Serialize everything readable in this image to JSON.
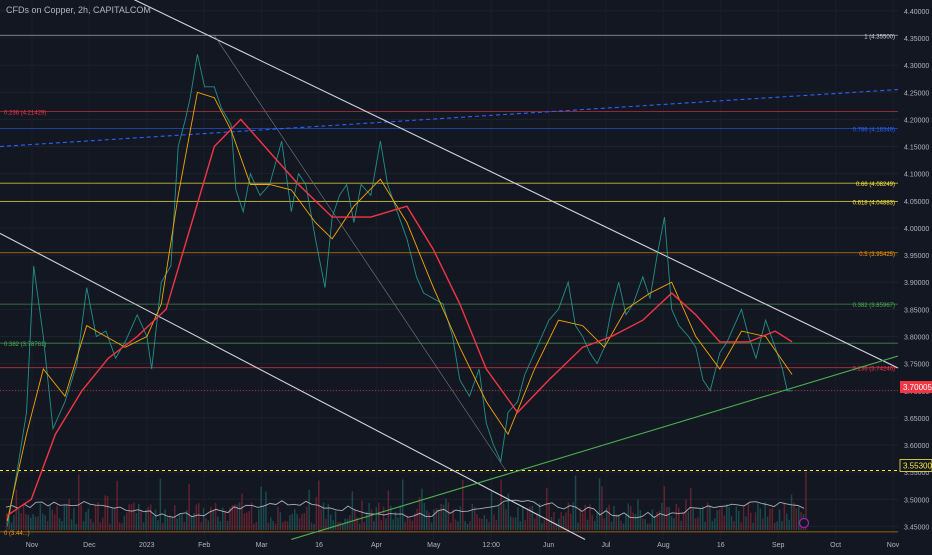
{
  "header": {
    "title": "CFDs on Copper, 2h, CAPITALCOM"
  },
  "price_axis": {
    "current_price_label": "3.70005",
    "reference_price_label": "3.55300"
  },
  "fib_levels": [
    {
      "text": "1 (4.35500)",
      "price": 4.355,
      "color": "#d1d4dc",
      "label_side": "right"
    },
    {
      "text": "0.236 (4.21429)",
      "price": 4.21429,
      "color": "#f23645",
      "label_side": "left"
    },
    {
      "text": "0.786 (4.18349)",
      "price": 4.18349,
      "color": "#2962ff",
      "label_side": "right"
    },
    {
      "text": "0.66 (4.08249)",
      "price": 4.08249,
      "color": "#ffeb3b",
      "label_side": "right"
    },
    {
      "text": "0.618 (4.04883)",
      "price": 4.04883,
      "color": "#ffeb3b",
      "label_side": "right"
    },
    {
      "text": "0.5 (3.95425)",
      "price": 3.95425,
      "color": "#ff9800",
      "label_side": "right"
    },
    {
      "text": "0.382 (3.85967)",
      "price": 3.85967,
      "color": "#4caf50",
      "label_side": "right"
    },
    {
      "text": "0.382 (3.78761)",
      "price": 3.78761,
      "color": "#4caf50",
      "label_side": "left"
    },
    {
      "text": "0.236 (3.74246)",
      "price": 3.74246,
      "color": "#f23645",
      "label_side": "right"
    },
    {
      "text": "0 (3.44...)",
      "price": 3.44,
      "color": "#ff9800",
      "label_side": "left"
    }
  ],
  "chart_data": {
    "type": "line",
    "title": "CFDs on Copper, 2h, CAPITALCOM",
    "x_labels": [
      "Nov",
      "Dec",
      "2023",
      "Feb",
      "Mar",
      "16",
      "Apr",
      "May",
      "12:00",
      "Jun",
      "Jul",
      "Aug",
      "16",
      "Sep",
      "Oct",
      "Nov"
    ],
    "y_ticks": [
      "4.40000",
      "4.35000",
      "4.30000",
      "4.25000",
      "4.20000",
      "4.15000",
      "4.10000",
      "4.05000",
      "4.00000",
      "3.95000",
      "3.90000",
      "3.85000",
      "3.80000",
      "3.75000",
      "3.70000",
      "3.65000",
      "3.60000",
      "3.55000",
      "3.50000",
      "3.45000"
    ],
    "ylim": [
      3.425,
      4.42
    ],
    "series": [
      {
        "color": "#26a69a",
        "values": [
          [
            "2022-10-31",
            3.45
          ],
          [
            "2022-11-04",
            3.55
          ],
          [
            "2022-11-08",
            3.66
          ],
          [
            "2022-11-11",
            3.93
          ],
          [
            "2022-11-15",
            3.8
          ],
          [
            "2022-11-19",
            3.63
          ],
          [
            "2022-11-24",
            3.68
          ],
          [
            "2022-11-29",
            3.75
          ],
          [
            "2022-12-03",
            3.89
          ],
          [
            "2022-12-07",
            3.8
          ],
          [
            "2022-12-11",
            3.81
          ],
          [
            "2022-12-15",
            3.76
          ],
          [
            "2022-12-19",
            3.79
          ],
          [
            "2022-12-24",
            3.84
          ],
          [
            "2022-12-28",
            3.8
          ],
          [
            "2022-12-30",
            3.74
          ],
          [
            "2023-01-03",
            3.9
          ],
          [
            "2023-01-07",
            3.93
          ],
          [
            "2023-01-10",
            4.15
          ],
          [
            "2023-01-13",
            4.2
          ],
          [
            "2023-01-15",
            4.24
          ],
          [
            "2023-01-18",
            4.32
          ],
          [
            "2023-01-21",
            4.26
          ],
          [
            "2023-01-25",
            4.26
          ],
          [
            "2023-01-28",
            4.22
          ],
          [
            "2023-02-01",
            4.19
          ],
          [
            "2023-02-03",
            4.07
          ],
          [
            "2023-02-06",
            4.03
          ],
          [
            "2023-02-09",
            4.1
          ],
          [
            "2023-02-13",
            4.06
          ],
          [
            "2023-02-17",
            4.08
          ],
          [
            "2023-02-22",
            4.16
          ],
          [
            "2023-02-26",
            4.03
          ],
          [
            "2023-03-01",
            4.1
          ],
          [
            "2023-03-04",
            4.08
          ],
          [
            "2023-03-08",
            3.98
          ],
          [
            "2023-03-12",
            3.89
          ],
          [
            "2023-03-15",
            4.02
          ],
          [
            "2023-03-18",
            4.06
          ],
          [
            "2023-03-21",
            4.08
          ],
          [
            "2023-03-24",
            4.01
          ],
          [
            "2023-03-27",
            4.08
          ],
          [
            "2023-03-31",
            4.06
          ],
          [
            "2023-04-04",
            4.16
          ],
          [
            "2023-04-07",
            4.08
          ],
          [
            "2023-04-11",
            4.03
          ],
          [
            "2023-04-15",
            3.98
          ],
          [
            "2023-04-19",
            3.91
          ],
          [
            "2023-04-22",
            3.88
          ],
          [
            "2023-04-26",
            3.87
          ],
          [
            "2023-04-30",
            3.86
          ],
          [
            "2023-05-04",
            3.8
          ],
          [
            "2023-05-07",
            3.72
          ],
          [
            "2023-05-11",
            3.69
          ],
          [
            "2023-05-15",
            3.74
          ],
          [
            "2023-05-18",
            3.64
          ],
          [
            "2023-05-21",
            3.6
          ],
          [
            "2023-05-24",
            3.57
          ],
          [
            "2023-05-27",
            3.66
          ],
          [
            "2023-05-31",
            3.68
          ],
          [
            "2023-06-03",
            3.73
          ],
          [
            "2023-06-07",
            3.77
          ],
          [
            "2023-06-10",
            3.8
          ],
          [
            "2023-06-13",
            3.83
          ],
          [
            "2023-06-17",
            3.85
          ],
          [
            "2023-06-21",
            3.9
          ],
          [
            "2023-06-24",
            3.82
          ],
          [
            "2023-06-27",
            3.8
          ],
          [
            "2023-06-30",
            3.77
          ],
          [
            "2023-07-03",
            3.75
          ],
          [
            "2023-07-06",
            3.78
          ],
          [
            "2023-07-09",
            3.85
          ],
          [
            "2023-07-12",
            3.9
          ],
          [
            "2023-07-15",
            3.84
          ],
          [
            "2023-07-18",
            3.86
          ],
          [
            "2023-07-22",
            3.91
          ],
          [
            "2023-07-25",
            3.87
          ],
          [
            "2023-07-28",
            3.95
          ],
          [
            "2023-07-31",
            4.02
          ],
          [
            "2023-08-03",
            3.85
          ],
          [
            "2023-08-06",
            3.82
          ],
          [
            "2023-08-10",
            3.8
          ],
          [
            "2023-08-13",
            3.78
          ],
          [
            "2023-08-16",
            3.72
          ],
          [
            "2023-08-19",
            3.7
          ],
          [
            "2023-08-23",
            3.77
          ],
          [
            "2023-08-26",
            3.79
          ],
          [
            "2023-08-29",
            3.82
          ],
          [
            "2023-09-01",
            3.85
          ],
          [
            "2023-09-04",
            3.8
          ],
          [
            "2023-09-07",
            3.76
          ],
          [
            "2023-09-11",
            3.83
          ],
          [
            "2023-09-15",
            3.78
          ],
          [
            "2023-09-18",
            3.74
          ],
          [
            "2023-09-20",
            3.7
          ],
          [
            "2023-09-22",
            3.7
          ]
        ]
      },
      {
        "color": "#f7a600",
        "values": [
          [
            "2022-10-31",
            3.46
          ],
          [
            "2022-11-08",
            3.62
          ],
          [
            "2022-11-15",
            3.74
          ],
          [
            "2022-11-24",
            3.69
          ],
          [
            "2022-12-03",
            3.82
          ],
          [
            "2022-12-11",
            3.8
          ],
          [
            "2022-12-19",
            3.78
          ],
          [
            "2022-12-28",
            3.8
          ],
          [
            "2023-01-03",
            3.86
          ],
          [
            "2023-01-10",
            4.06
          ],
          [
            "2023-01-18",
            4.25
          ],
          [
            "2023-01-25",
            4.24
          ],
          [
            "2023-02-01",
            4.18
          ],
          [
            "2023-02-09",
            4.08
          ],
          [
            "2023-02-17",
            4.08
          ],
          [
            "2023-02-26",
            4.07
          ],
          [
            "2023-03-08",
            4.01
          ],
          [
            "2023-03-15",
            3.98
          ],
          [
            "2023-03-24",
            4.04
          ],
          [
            "2023-04-04",
            4.09
          ],
          [
            "2023-04-15",
            4.01
          ],
          [
            "2023-04-26",
            3.89
          ],
          [
            "2023-05-07",
            3.78
          ],
          [
            "2023-05-18",
            3.68
          ],
          [
            "2023-05-27",
            3.62
          ],
          [
            "2023-06-07",
            3.74
          ],
          [
            "2023-06-17",
            3.83
          ],
          [
            "2023-06-27",
            3.82
          ],
          [
            "2023-07-06",
            3.78
          ],
          [
            "2023-07-15",
            3.85
          ],
          [
            "2023-07-25",
            3.88
          ],
          [
            "2023-08-03",
            3.9
          ],
          [
            "2023-08-13",
            3.8
          ],
          [
            "2023-08-23",
            3.74
          ],
          [
            "2023-09-01",
            3.81
          ],
          [
            "2023-09-11",
            3.8
          ],
          [
            "2023-09-22",
            3.73
          ]
        ]
      },
      {
        "color": "#f23645",
        "values": [
          [
            "2022-10-31",
            3.47
          ],
          [
            "2022-11-10",
            3.5
          ],
          [
            "2022-11-20",
            3.62
          ],
          [
            "2022-12-01",
            3.7
          ],
          [
            "2022-12-12",
            3.76
          ],
          [
            "2022-12-24",
            3.8
          ],
          [
            "2023-01-05",
            3.85
          ],
          [
            "2023-01-15",
            4.0
          ],
          [
            "2023-01-25",
            4.15
          ],
          [
            "2023-02-05",
            4.2
          ],
          [
            "2023-02-17",
            4.14
          ],
          [
            "2023-03-01",
            4.08
          ],
          [
            "2023-03-15",
            4.02
          ],
          [
            "2023-03-31",
            4.02
          ],
          [
            "2023-04-15",
            4.04
          ],
          [
            "2023-04-26",
            3.96
          ],
          [
            "2023-05-07",
            3.86
          ],
          [
            "2023-05-18",
            3.74
          ],
          [
            "2023-05-31",
            3.66
          ],
          [
            "2023-06-13",
            3.72
          ],
          [
            "2023-06-27",
            3.78
          ],
          [
            "2023-07-09",
            3.8
          ],
          [
            "2023-07-22",
            3.83
          ],
          [
            "2023-08-03",
            3.88
          ],
          [
            "2023-08-13",
            3.84
          ],
          [
            "2023-08-23",
            3.79
          ],
          [
            "2023-09-04",
            3.79
          ],
          [
            "2023-09-15",
            3.81
          ],
          [
            "2023-09-22",
            3.79
          ]
        ]
      }
    ],
    "date_range": [
      "2022-10-28",
      "2023-11-05"
    ],
    "volume_histogram": true,
    "trendlines": [
      {
        "from": [
          "2022-10-28",
          4.15
        ],
        "to": [
          "2023-11-05",
          4.255
        ],
        "color": "#2962ff",
        "dashed": true
      },
      {
        "from": [
          "2022-12-02",
          4.465
        ],
        "to": [
          "2023-11-05",
          3.742
        ],
        "color": "#d1d4dc"
      },
      {
        "from": [
          "2022-10-28",
          3.99
        ],
        "to": [
          "2023-06-28",
          3.426
        ],
        "color": "#d1d4dc"
      },
      {
        "from": [
          "2023-01-25",
          4.355
        ],
        "to": [
          "2023-05-26",
          3.554
        ],
        "color": "#787b86",
        "thin": true
      },
      {
        "from": [
          "2023-02-26",
          3.426
        ],
        "to": [
          "2023-11-05",
          3.764
        ],
        "color": "#4caf50"
      }
    ]
  }
}
